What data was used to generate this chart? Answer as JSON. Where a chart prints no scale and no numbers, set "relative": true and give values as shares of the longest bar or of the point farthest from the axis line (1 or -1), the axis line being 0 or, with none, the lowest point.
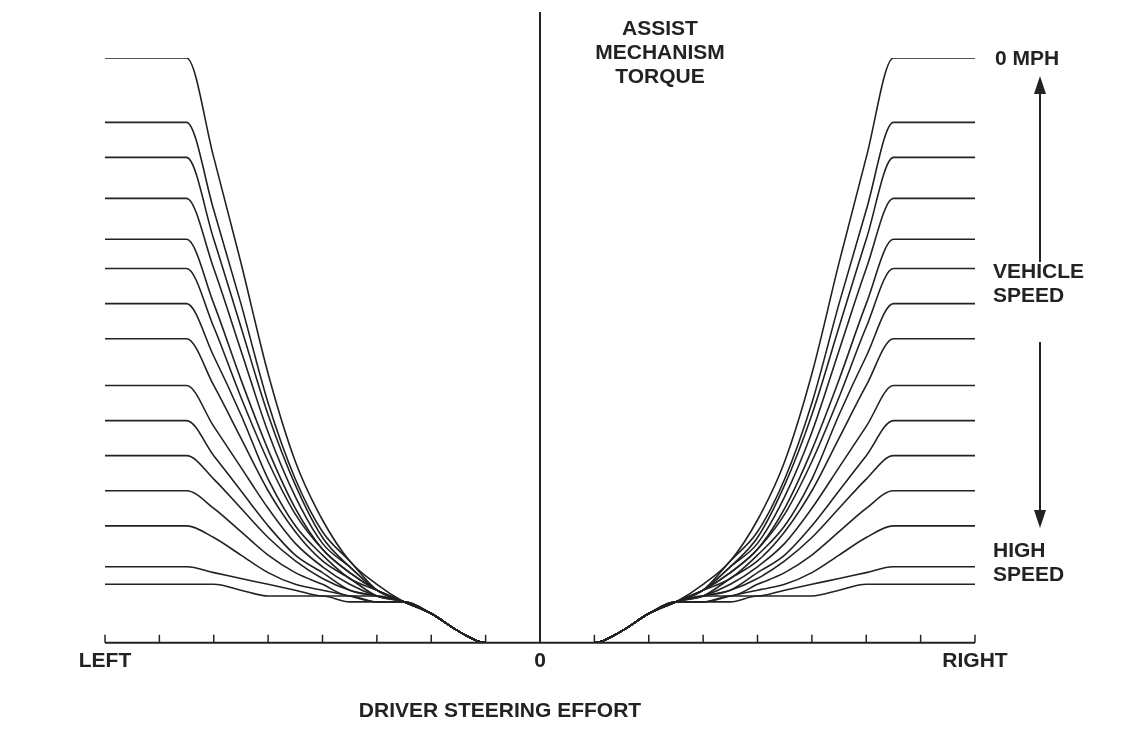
{
  "chart_data": {
    "type": "line",
    "relative": true,
    "marker": "none",
    "xlabel": "DRIVER STEERING EFFORT",
    "ylabel": "ASSIST MECHANISM TORQUE",
    "annotations": [
      "0 MPH",
      "VEHICLE SPEED",
      "HIGH SPEED"
    ],
    "categories": [
      "LEFT",
      null,
      null,
      null,
      null,
      null,
      null,
      null,
      null,
      null,
      null,
      null,
      null,
      null,
      null,
      null,
      "0",
      null,
      null,
      null,
      null,
      null,
      null,
      null,
      null,
      null,
      null,
      null,
      null,
      null,
      null,
      null,
      "RIGHT"
    ],
    "series": [
      {
        "color": "#222222",
        "values": [
          1,
          1,
          1,
          1,
          0.83,
          0.65,
          0.46,
          0.31,
          0.21,
          0.14,
          0.1,
          0.07,
          0.05,
          0.02,
          0,
          0,
          0,
          0,
          0,
          0.02,
          0.05,
          0.07,
          0.1,
          0.14,
          0.21,
          0.31,
          0.46,
          0.65,
          0.83,
          1,
          1,
          1,
          1
        ]
      },
      {
        "color": "#222222",
        "values": [
          0.89,
          0.89,
          0.89,
          0.89,
          0.74,
          0.58,
          0.41,
          0.28,
          0.19,
          0.14,
          0.09,
          0.07,
          0.05,
          0.02,
          0,
          0,
          0,
          0,
          0,
          0.02,
          0.05,
          0.07,
          0.09,
          0.14,
          0.19,
          0.28,
          0.41,
          0.58,
          0.74,
          0.89,
          0.89,
          0.89,
          0.89
        ]
      },
      {
        "color": "#222222",
        "values": [
          0.83,
          0.83,
          0.83,
          0.83,
          0.69,
          0.54,
          0.39,
          0.27,
          0.18,
          0.13,
          0.09,
          0.07,
          0.05,
          0.02,
          0,
          0,
          0,
          0,
          0,
          0.02,
          0.05,
          0.07,
          0.09,
          0.13,
          0.18,
          0.27,
          0.39,
          0.54,
          0.69,
          0.83,
          0.83,
          0.83,
          0.83
        ]
      },
      {
        "color": "#222222",
        "values": [
          0.76,
          0.76,
          0.76,
          0.76,
          0.64,
          0.5,
          0.36,
          0.25,
          0.17,
          0.13,
          0.09,
          0.07,
          0.05,
          0.02,
          0,
          0,
          0,
          0,
          0,
          0.02,
          0.05,
          0.07,
          0.09,
          0.13,
          0.17,
          0.25,
          0.36,
          0.5,
          0.64,
          0.76,
          0.76,
          0.76,
          0.76
        ]
      },
      {
        "color": "#222222",
        "values": [
          0.69,
          0.69,
          0.69,
          0.69,
          0.58,
          0.45,
          0.33,
          0.23,
          0.16,
          0.12,
          0.09,
          0.07,
          0.05,
          0.02,
          0,
          0,
          0,
          0,
          0,
          0.02,
          0.05,
          0.07,
          0.09,
          0.12,
          0.16,
          0.23,
          0.33,
          0.45,
          0.58,
          0.69,
          0.69,
          0.69,
          0.69
        ]
      },
      {
        "color": "#222222",
        "values": [
          0.64,
          0.64,
          0.64,
          0.64,
          0.54,
          0.42,
          0.31,
          0.22,
          0.16,
          0.12,
          0.09,
          0.07,
          0.05,
          0.02,
          0,
          0,
          0,
          0,
          0,
          0.02,
          0.05,
          0.07,
          0.09,
          0.12,
          0.16,
          0.22,
          0.31,
          0.42,
          0.54,
          0.64,
          0.64,
          0.64,
          0.64
        ]
      },
      {
        "color": "#222222",
        "values": [
          0.58,
          0.58,
          0.58,
          0.58,
          0.49,
          0.39,
          0.28,
          0.2,
          0.15,
          0.11,
          0.09,
          0.07,
          0.05,
          0.02,
          0,
          0,
          0,
          0,
          0,
          0.02,
          0.05,
          0.07,
          0.09,
          0.11,
          0.15,
          0.2,
          0.28,
          0.39,
          0.49,
          0.58,
          0.58,
          0.58,
          0.58
        ]
      },
      {
        "color": "#222222",
        "values": [
          0.52,
          0.52,
          0.52,
          0.52,
          0.44,
          0.35,
          0.26,
          0.19,
          0.14,
          0.11,
          0.08,
          0.07,
          0.05,
          0.02,
          0,
          0,
          0,
          0,
          0,
          0.02,
          0.05,
          0.07,
          0.08,
          0.11,
          0.14,
          0.19,
          0.26,
          0.35,
          0.44,
          0.52,
          0.52,
          0.52,
          0.52
        ]
      },
      {
        "color": "#222222",
        "values": [
          0.44,
          0.44,
          0.44,
          0.44,
          0.37,
          0.3,
          0.23,
          0.17,
          0.13,
          0.1,
          0.08,
          0.07,
          0.05,
          0.02,
          0,
          0,
          0,
          0,
          0,
          0.02,
          0.05,
          0.07,
          0.08,
          0.1,
          0.13,
          0.17,
          0.23,
          0.3,
          0.37,
          0.44,
          0.44,
          0.44,
          0.44
        ]
      },
      {
        "color": "#222222",
        "values": [
          0.38,
          0.38,
          0.38,
          0.38,
          0.32,
          0.26,
          0.2,
          0.15,
          0.12,
          0.09,
          0.08,
          0.07,
          0.05,
          0.02,
          0,
          0,
          0,
          0,
          0,
          0.02,
          0.05,
          0.07,
          0.08,
          0.09,
          0.12,
          0.15,
          0.2,
          0.26,
          0.32,
          0.38,
          0.38,
          0.38,
          0.38
        ]
      },
      {
        "color": "#222222",
        "values": [
          0.32,
          0.32,
          0.32,
          0.32,
          0.28,
          0.23,
          0.18,
          0.14,
          0.11,
          0.09,
          0.08,
          0.07,
          0.05,
          0.02,
          0,
          0,
          0,
          0,
          0,
          0.02,
          0.05,
          0.07,
          0.08,
          0.09,
          0.11,
          0.14,
          0.18,
          0.23,
          0.28,
          0.32,
          0.32,
          0.32,
          0.32
        ]
      },
      {
        "color": "#222222",
        "values": [
          0.26,
          0.26,
          0.26,
          0.26,
          0.23,
          0.19,
          0.15,
          0.12,
          0.1,
          0.08,
          0.08,
          0.07,
          0.05,
          0.02,
          0,
          0,
          0,
          0,
          0,
          0.02,
          0.05,
          0.07,
          0.08,
          0.08,
          0.1,
          0.12,
          0.15,
          0.19,
          0.23,
          0.26,
          0.26,
          0.26,
          0.26
        ]
      },
      {
        "color": "#222222",
        "values": [
          0.2,
          0.2,
          0.2,
          0.2,
          0.18,
          0.15,
          0.12,
          0.1,
          0.09,
          0.08,
          0.07,
          0.07,
          0.05,
          0.02,
          0,
          0,
          0,
          0,
          0,
          0.02,
          0.05,
          0.07,
          0.07,
          0.08,
          0.09,
          0.1,
          0.12,
          0.15,
          0.18,
          0.2,
          0.2,
          0.2,
          0.2
        ]
      },
      {
        "color": "#222222",
        "values": [
          0.13,
          0.13,
          0.13,
          0.13,
          0.12,
          0.11,
          0.1,
          0.09,
          0.08,
          0.08,
          0.07,
          0.07,
          0.05,
          0.02,
          0,
          0,
          0,
          0,
          0,
          0.02,
          0.05,
          0.07,
          0.07,
          0.08,
          0.08,
          0.09,
          0.1,
          0.11,
          0.12,
          0.13,
          0.13,
          0.13,
          0.13
        ]
      },
      {
        "color": "#222222",
        "values": [
          0.1,
          0.1,
          0.1,
          0.1,
          0.1,
          0.09,
          0.08,
          0.08,
          0.08,
          0.07,
          0.07,
          0.07,
          0.05,
          0.02,
          0,
          0,
          0,
          0,
          0,
          0.02,
          0.05,
          0.07,
          0.07,
          0.07,
          0.08,
          0.08,
          0.08,
          0.09,
          0.1,
          0.1,
          0.1,
          0.1,
          0.1
        ]
      }
    ]
  }
}
